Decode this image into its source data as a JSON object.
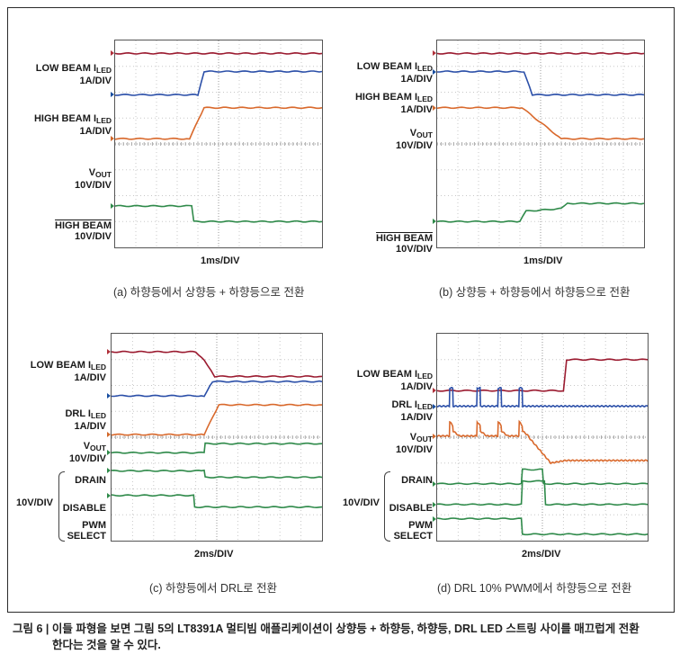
{
  "figure_caption_line1": "그림 6 | 이들 파형을 보면 그림 5의 LT8391A 멀티빔 애플리케이션이 상향등 + 하향등, 하향등, DRL LED 스트링 사이를 매끄럽게 전환",
  "figure_caption_line2": "한다는 것을 알 수 있다.",
  "colors": {
    "red": "#9b1b30",
    "blue": "#2b4fa8",
    "orange": "#d9692c",
    "green": "#2f8a4a"
  },
  "chart_data": [
    {
      "type": "line",
      "caption": "(a) 하향등에서 상향등 + 하향등으로 전환",
      "xlabel": "1ms/DIV",
      "labels": [
        {
          "main": "LOW BEAM I",
          "sub": "LED",
          "line2": "1A/DIV"
        },
        {
          "main": "HIGH BEAM I",
          "sub": "LED",
          "line2": "1A/DIV"
        },
        {
          "main": "V",
          "sub": "OUT",
          "line2": "10V/DIV"
        },
        {
          "main": "HIGH BEAM",
          "overline": true,
          "line2": "10V/DIV"
        }
      ],
      "series": [
        {
          "name": "LOW BEAM ILED",
          "color": "red",
          "x": [
            0,
            10
          ],
          "y": [
            7.5,
            7.5
          ]
        },
        {
          "name": "HIGH BEAM ILED",
          "color": "blue",
          "x": [
            0,
            4.0,
            4.3,
            10
          ],
          "y": [
            5.9,
            5.9,
            6.8,
            6.8
          ]
        },
        {
          "name": "VOUT",
          "color": "orange",
          "x": [
            0,
            3.6,
            4.3,
            10
          ],
          "y": [
            4.2,
            4.2,
            5.4,
            5.4
          ]
        },
        {
          "name": "HIGH BEAM",
          "color": "green",
          "x": [
            0,
            3.7,
            3.8,
            10
          ],
          "y": [
            1.6,
            1.6,
            1.0,
            1.0
          ]
        }
      ]
    },
    {
      "type": "line",
      "caption": "(b) 상향등 + 하향등에서 하향등으로 전환",
      "xlabel": "1ms/DIV",
      "labels": [
        {
          "main": "LOW BEAM I",
          "sub": "LED",
          "line2": "1A/DIV"
        },
        {
          "main": "HIGH BEAM I",
          "sub": "LED",
          "line2": "1A/DIV"
        },
        {
          "main": "V",
          "sub": "OUT",
          "line2": "10V/DIV"
        },
        {
          "main": "HIGH BEAM",
          "overline": true,
          "line2": "10V/DIV"
        }
      ],
      "series": [
        {
          "name": "LOW BEAM ILED",
          "color": "red",
          "x": [
            0,
            10
          ],
          "y": [
            7.5,
            7.5
          ]
        },
        {
          "name": "HIGH BEAM ILED",
          "color": "blue",
          "x": [
            0,
            4.2,
            4.6,
            10
          ],
          "y": [
            6.8,
            6.8,
            5.9,
            5.9
          ]
        },
        {
          "name": "VOUT",
          "color": "orange",
          "x": [
            0,
            4.1,
            6.0,
            10
          ],
          "y": [
            5.4,
            5.4,
            4.2,
            4.2
          ]
        },
        {
          "name": "HIGH BEAM",
          "color": "green",
          "x": [
            0,
            4.0,
            4.3,
            6.0,
            6.3,
            10
          ],
          "y": [
            1.0,
            1.0,
            1.4,
            1.5,
            1.7,
            1.7
          ]
        }
      ]
    },
    {
      "type": "line",
      "caption": "(c) 하향등에서 DRL로 전환",
      "xlabel": "2ms/DIV",
      "labels": [
        {
          "main": "LOW BEAM I",
          "sub": "LED",
          "line2": "1A/DIV"
        },
        {
          "main": "DRL I",
          "sub": "LED",
          "line2": "1A/DIV"
        },
        {
          "main": "V",
          "sub": "OUT",
          "line2": "10V/DIV"
        }
      ],
      "group_label": "10V/DIV",
      "group_items": [
        "DRAIN",
        "DISABLE",
        "PWM\nSELECT"
      ],
      "series": [
        {
          "name": "LOW BEAM ILED",
          "color": "red",
          "x": [
            0,
            4.0,
            4.4,
            4.9,
            10
          ],
          "y": [
            7.3,
            7.3,
            7.0,
            6.35,
            6.35
          ]
        },
        {
          "name": "DRL ILED",
          "color": "blue",
          "x": [
            0,
            4.4,
            4.8,
            10
          ],
          "y": [
            5.6,
            5.6,
            6.15,
            6.15
          ]
        },
        {
          "name": "VOUT",
          "color": "orange",
          "x": [
            0,
            4.4,
            5.1,
            10
          ],
          "y": [
            4.1,
            4.1,
            5.25,
            5.25
          ]
        },
        {
          "name": "DRAIN",
          "color": "green",
          "x": [
            0,
            4.4,
            4.45,
            10
          ],
          "y": [
            3.4,
            3.4,
            3.75,
            3.75
          ]
        },
        {
          "name": "DISABLE",
          "color": "green",
          "x": [
            0,
            4.4,
            4.45,
            10
          ],
          "y": [
            2.7,
            2.7,
            2.45,
            2.45
          ]
        },
        {
          "name": "PWM SELECT",
          "color": "green",
          "x": [
            0,
            3.9,
            3.95,
            10
          ],
          "y": [
            1.75,
            1.75,
            1.3,
            1.3
          ]
        }
      ]
    },
    {
      "type": "line",
      "caption": "(d) DRL 10% PWM에서 하향등으로 전환",
      "xlabel": "2ms/DIV",
      "labels": [
        {
          "main": "LOW BEAM I",
          "sub": "LED",
          "line2": "1A/DIV"
        },
        {
          "main": "DRL I",
          "sub": "LED",
          "line2": "1A/DIV"
        },
        {
          "main": "V",
          "sub": "OUT",
          "line2": "10V/DIV"
        }
      ],
      "group_label": "10V/DIV",
      "group_items": [
        "DRAIN",
        "DISABLE",
        "PWM\nSELECT"
      ],
      "series": [
        {
          "name": "LOW BEAM ILED",
          "color": "red",
          "x": [
            0,
            6.0,
            6.15,
            10
          ],
          "y": [
            5.8,
            5.8,
            7.0,
            7.0
          ]
        },
        {
          "name": "DRL ILED",
          "color": "blue",
          "pulses": [
            0.6,
            1.9,
            2.9,
            3.9
          ],
          "x": [
            0,
            10
          ],
          "y": [
            5.2,
            5.2
          ]
        },
        {
          "name": "VOUT",
          "color": "orange",
          "pulses": [
            0.6,
            1.9,
            2.9,
            3.9
          ],
          "x": [
            0,
            4.3,
            5.4,
            6.1,
            10
          ],
          "y": [
            4.05,
            4.05,
            3.0,
            3.1,
            3.1
          ]
        },
        {
          "name": "DRAIN",
          "color": "green",
          "x": [
            0,
            4.0,
            4.05,
            5.0,
            5.05,
            10
          ],
          "y": [
            2.2,
            2.2,
            2.75,
            2.75,
            2.2,
            2.2
          ]
        },
        {
          "name": "DISABLE",
          "color": "green",
          "x": [
            0,
            4.0,
            4.05,
            5.1,
            5.15,
            10
          ],
          "y": [
            1.4,
            1.4,
            2.3,
            2.3,
            1.4,
            1.4
          ]
        },
        {
          "name": "PWM SELECT",
          "color": "green",
          "x": [
            0,
            4.0,
            4.05,
            10
          ],
          "y": [
            0.85,
            0.85,
            0.25,
            0.25
          ]
        }
      ]
    }
  ]
}
